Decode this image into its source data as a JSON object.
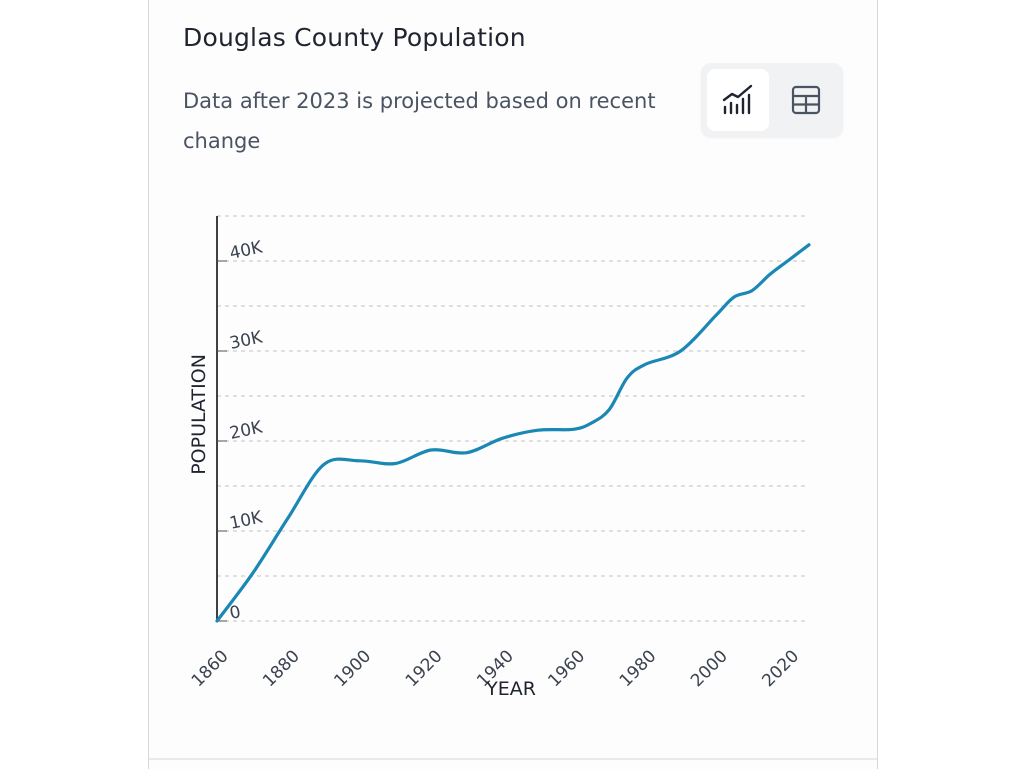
{
  "card": {
    "title": "Douglas County Population",
    "subtitle": "Data after 2023 is projected based on recent change",
    "view_toggle": {
      "chart_icon": "line-chart-icon",
      "table_icon": "table-icon",
      "selected": "chart"
    }
  },
  "colors": {
    "line": "#1a87b4",
    "grid": "#cfcfcf",
    "axis": "#111111"
  },
  "chart_data": {
    "type": "line",
    "title": "Douglas County Population",
    "xlabel": "YEAR",
    "ylabel": "POPULATION",
    "xlim": [
      1860,
      2026
    ],
    "ylim": [
      0,
      45000
    ],
    "x_ticks": [
      1860,
      1880,
      1900,
      1920,
      1940,
      1960,
      1980,
      2000,
      2020
    ],
    "x_tick_labels": [
      "1860",
      "1880",
      "1900",
      "1920",
      "1940",
      "1960",
      "1980",
      "2000",
      "2020"
    ],
    "y_ticks": [
      0,
      10000,
      20000,
      30000,
      40000
    ],
    "y_tick_labels": [
      "0",
      "10K",
      "20K",
      "30K",
      "40K"
    ],
    "grid": "horizontal dashed",
    "series": [
      {
        "x": [
          1860,
          1870,
          1880,
          1890,
          1900,
          1910,
          1920,
          1930,
          1940,
          1950,
          1960,
          1965,
          1970,
          1975,
          1980,
          1990,
          2000,
          2005,
          2010,
          2015,
          2020,
          2026
        ],
        "values": [
          0,
          5300,
          11500,
          17400,
          17800,
          17500,
          19000,
          18700,
          20300,
          21200,
          21300,
          22000,
          23500,
          27000,
          28500,
          30000,
          34000,
          36000,
          36700,
          38500,
          40000,
          41800
        ]
      }
    ]
  }
}
